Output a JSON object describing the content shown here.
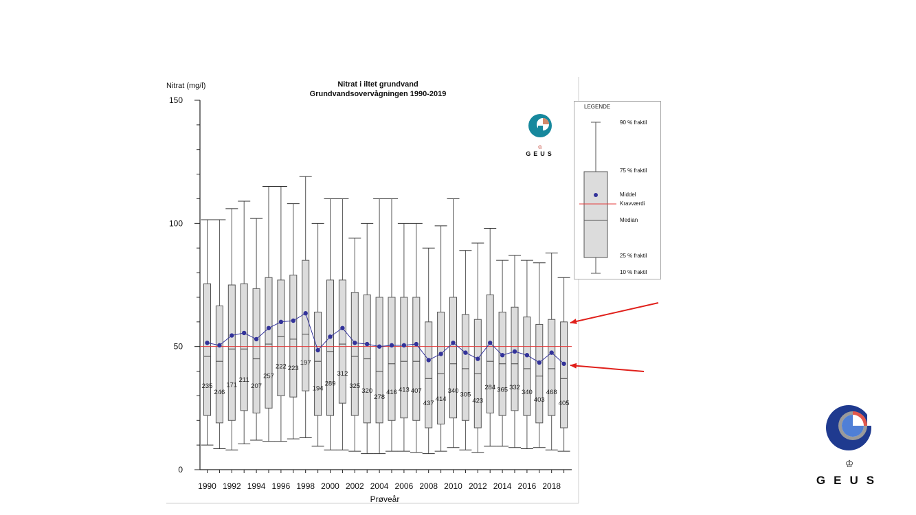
{
  "colors": {
    "box_fill": "#dcdcdc",
    "box_stroke": "#555555",
    "mean": "#33339a",
    "limit": "#e33b3b",
    "arrow": "#e0201b",
    "logo_blue": "#1f3a8f",
    "logo_light": "#4f7fd6",
    "logo_grey": "#9a9a9a",
    "logo_red": "#e2574c",
    "chart_logo_teal": "#17889d"
  },
  "logo": {
    "text": "GEUS",
    "icon": "geus-crown-icon"
  },
  "chart_data": {
    "type": "box",
    "title": "Nitrat i iltet grundvand",
    "subtitle": "Grundvandsovervågningen 1990-2019",
    "ylabel": "Nitrat (mg/l)",
    "xlabel": "Prøveår",
    "ylim": [
      0,
      150
    ],
    "yticks": [
      0,
      50,
      100,
      150
    ],
    "limit_value": 50,
    "years": [
      1990,
      1991,
      1992,
      1993,
      1994,
      1995,
      1996,
      1997,
      1998,
      1999,
      2000,
      2001,
      2002,
      2003,
      2004,
      2005,
      2006,
      2007,
      2008,
      2009,
      2010,
      2011,
      2012,
      2013,
      2014,
      2015,
      2016,
      2017,
      2018,
      2019
    ],
    "xtick_labels": [
      "1990",
      "1992",
      "1994",
      "1996",
      "1998",
      "2000",
      "2002",
      "2004",
      "2006",
      "2008",
      "2010",
      "2012",
      "2014",
      "2016",
      "2018"
    ],
    "p10": [
      10,
      8.5,
      8,
      10.5,
      12,
      11.5,
      11.5,
      12.5,
      13,
      9.5,
      8,
      8,
      7.5,
      6.5,
      6.5,
      7.5,
      7.5,
      7,
      6.5,
      7.5,
      9,
      8,
      7,
      9.5,
      9.5,
      9,
      8.5,
      9,
      8,
      7.5
    ],
    "p25": [
      22,
      19,
      20,
      24,
      23,
      25,
      30,
      29.5,
      32,
      22,
      22,
      27,
      22,
      19,
      19,
      20,
      21,
      20,
      17,
      18.5,
      21,
      20,
      17,
      23,
      22,
      24,
      22,
      19,
      22,
      17
    ],
    "median": [
      46,
      44,
      49,
      49,
      45,
      51,
      54,
      53,
      55,
      44,
      48,
      51,
      46,
      45,
      40,
      43,
      44,
      44,
      37,
      39,
      43,
      41,
      39,
      44,
      43,
      43,
      41,
      38,
      41,
      37
    ],
    "mean": [
      51.5,
      50.5,
      54.5,
      55.5,
      53,
      57.5,
      60,
      60.5,
      63.5,
      48.5,
      54,
      57.5,
      51.5,
      51,
      50,
      50.5,
      50.5,
      51,
      44.5,
      47,
      51.5,
      47.5,
      45,
      51.5,
      46.5,
      48,
      46.5,
      43.5,
      47.5,
      43
    ],
    "p75": [
      75.5,
      66.5,
      75,
      75.5,
      73.5,
      78,
      77,
      79,
      85,
      64,
      77,
      77,
      72,
      71,
      70,
      70,
      70,
      70,
      60,
      64,
      70,
      63,
      61,
      71,
      64,
      66,
      62,
      59,
      61,
      60
    ],
    "p90": [
      101.5,
      101.5,
      106,
      109,
      102,
      115,
      115,
      108,
      119,
      100,
      110,
      110,
      94,
      100,
      110,
      110,
      100,
      100,
      90,
      99,
      110,
      89,
      92,
      98,
      85,
      87,
      85,
      84,
      88,
      78
    ],
    "n": [
      235,
      246,
      171,
      211,
      207,
      257,
      222,
      223,
      197,
      194,
      289,
      312,
      325,
      320,
      278,
      416,
      413,
      407,
      437,
      414,
      340,
      305,
      423,
      284,
      365,
      332,
      340,
      403,
      468,
      405
    ],
    "legend": {
      "title": "LEGENDE",
      "p90": "90 % fraktil",
      "p75": "75 % fraktil",
      "mean": "Middel",
      "limit": "Kravværdi",
      "median": "Median",
      "p25": "25 % fraktil",
      "p10": "10 % fraktil"
    },
    "annotations": [
      {
        "type": "arrow",
        "points_to": "2019 75 % fraktil"
      },
      {
        "type": "arrow",
        "points_to": "2019 middel"
      }
    ]
  }
}
